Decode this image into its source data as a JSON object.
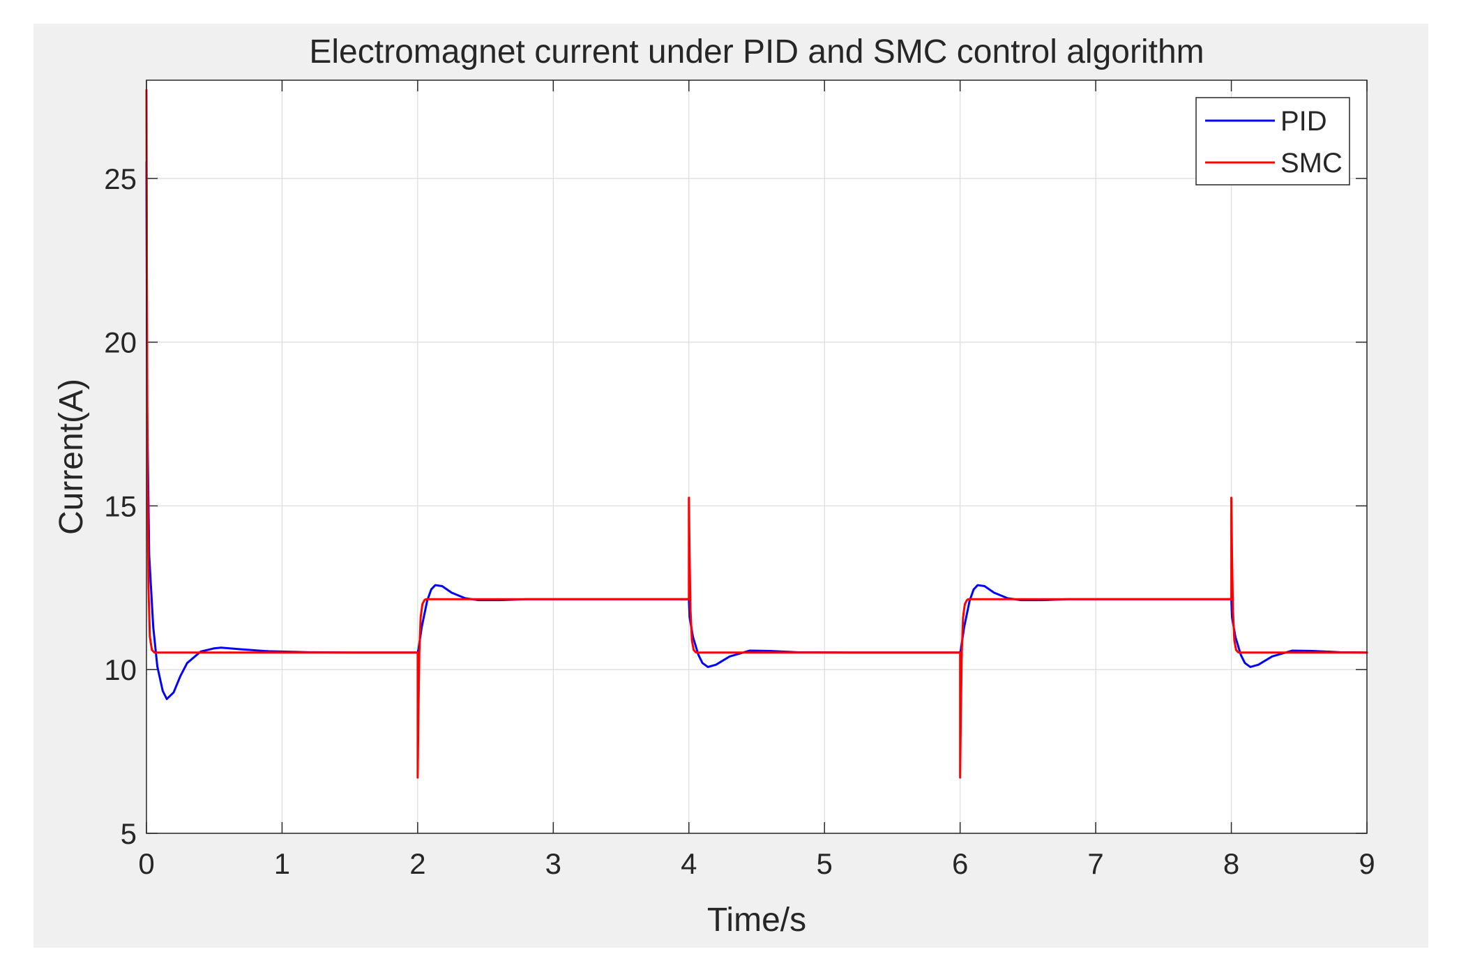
{
  "colors": {
    "figure_background": "#f0f0f0",
    "axes_background": "#ffffff",
    "grid": "#dcdcdc",
    "axis": "#262626"
  },
  "chart_data": {
    "type": "line",
    "title": "Electromagnet current under PID and SMC control algorithm",
    "xlabel": "Time/s",
    "ylabel": "Current(A)",
    "xlim": [
      0,
      9
    ],
    "ylim": [
      5,
      28
    ],
    "xticks": [
      0,
      1,
      2,
      3,
      4,
      5,
      6,
      7,
      8,
      9
    ],
    "yticks": [
      5,
      10,
      15,
      20,
      25
    ],
    "grid": true,
    "legend_position": "top-right",
    "series": [
      {
        "name": "PID",
        "color": "#0000ff",
        "x": [
          0,
          0.005,
          0.02,
          0.05,
          0.08,
          0.12,
          0.15,
          0.2,
          0.25,
          0.3,
          0.4,
          0.5,
          0.55,
          0.7,
          0.9,
          1.2,
          1.6,
          2.0,
          2.005,
          2.03,
          2.07,
          2.1,
          2.13,
          2.18,
          2.25,
          2.35,
          2.45,
          2.6,
          2.8,
          3.2,
          4.0,
          4.005,
          4.03,
          4.07,
          4.1,
          4.14,
          4.2,
          4.3,
          4.45,
          4.6,
          4.8,
          5.2,
          6.0,
          6.005,
          6.03,
          6.07,
          6.1,
          6.13,
          6.18,
          6.25,
          6.35,
          6.45,
          6.6,
          6.8,
          7.2,
          8.0,
          8.005,
          8.03,
          8.07,
          8.1,
          8.14,
          8.2,
          8.3,
          8.45,
          8.6,
          8.8,
          9.0
        ],
        "y": [
          25.5,
          18,
          13.5,
          11.3,
          10.1,
          9.35,
          9.1,
          9.3,
          9.8,
          10.2,
          10.55,
          10.65,
          10.67,
          10.62,
          10.56,
          10.53,
          10.52,
          10.52,
          10.6,
          11.3,
          12.1,
          12.45,
          12.58,
          12.55,
          12.35,
          12.18,
          12.12,
          12.12,
          12.15,
          12.15,
          12.15,
          11.6,
          11.0,
          10.45,
          10.2,
          10.08,
          10.15,
          10.4,
          10.58,
          10.57,
          10.53,
          10.52,
          10.52,
          10.6,
          11.3,
          12.1,
          12.45,
          12.58,
          12.55,
          12.35,
          12.18,
          12.12,
          12.12,
          12.15,
          12.15,
          12.15,
          11.6,
          11.0,
          10.45,
          10.2,
          10.08,
          10.15,
          10.4,
          10.58,
          10.57,
          10.53,
          10.52
        ]
      },
      {
        "name": "SMC",
        "color": "#ff0000",
        "x": [
          0,
          0.003,
          0.008,
          0.015,
          0.025,
          0.04,
          0.06,
          0.1,
          2.0,
          2.0,
          2.005,
          2.012,
          2.022,
          2.035,
          2.05,
          2.06,
          4.0,
          4.0,
          4.005,
          4.012,
          4.022,
          4.035,
          4.05,
          4.06,
          6.0,
          6.0,
          6.005,
          6.012,
          6.022,
          6.035,
          6.05,
          6.06,
          8.0,
          8.0,
          8.005,
          8.012,
          8.022,
          8.035,
          8.05,
          8.06,
          9.0
        ],
        "y": [
          27.7,
          22,
          16,
          12.5,
          11.0,
          10.6,
          10.52,
          10.52,
          10.52,
          6.7,
          8.5,
          10.5,
          11.6,
          12.0,
          12.12,
          12.15,
          12.15,
          15.25,
          13.5,
          11.8,
          10.9,
          10.6,
          10.53,
          10.52,
          10.52,
          6.7,
          8.5,
          10.5,
          11.6,
          12.0,
          12.12,
          12.15,
          12.15,
          15.25,
          13.5,
          11.8,
          10.9,
          10.6,
          10.53,
          10.52,
          10.52
        ]
      }
    ]
  }
}
